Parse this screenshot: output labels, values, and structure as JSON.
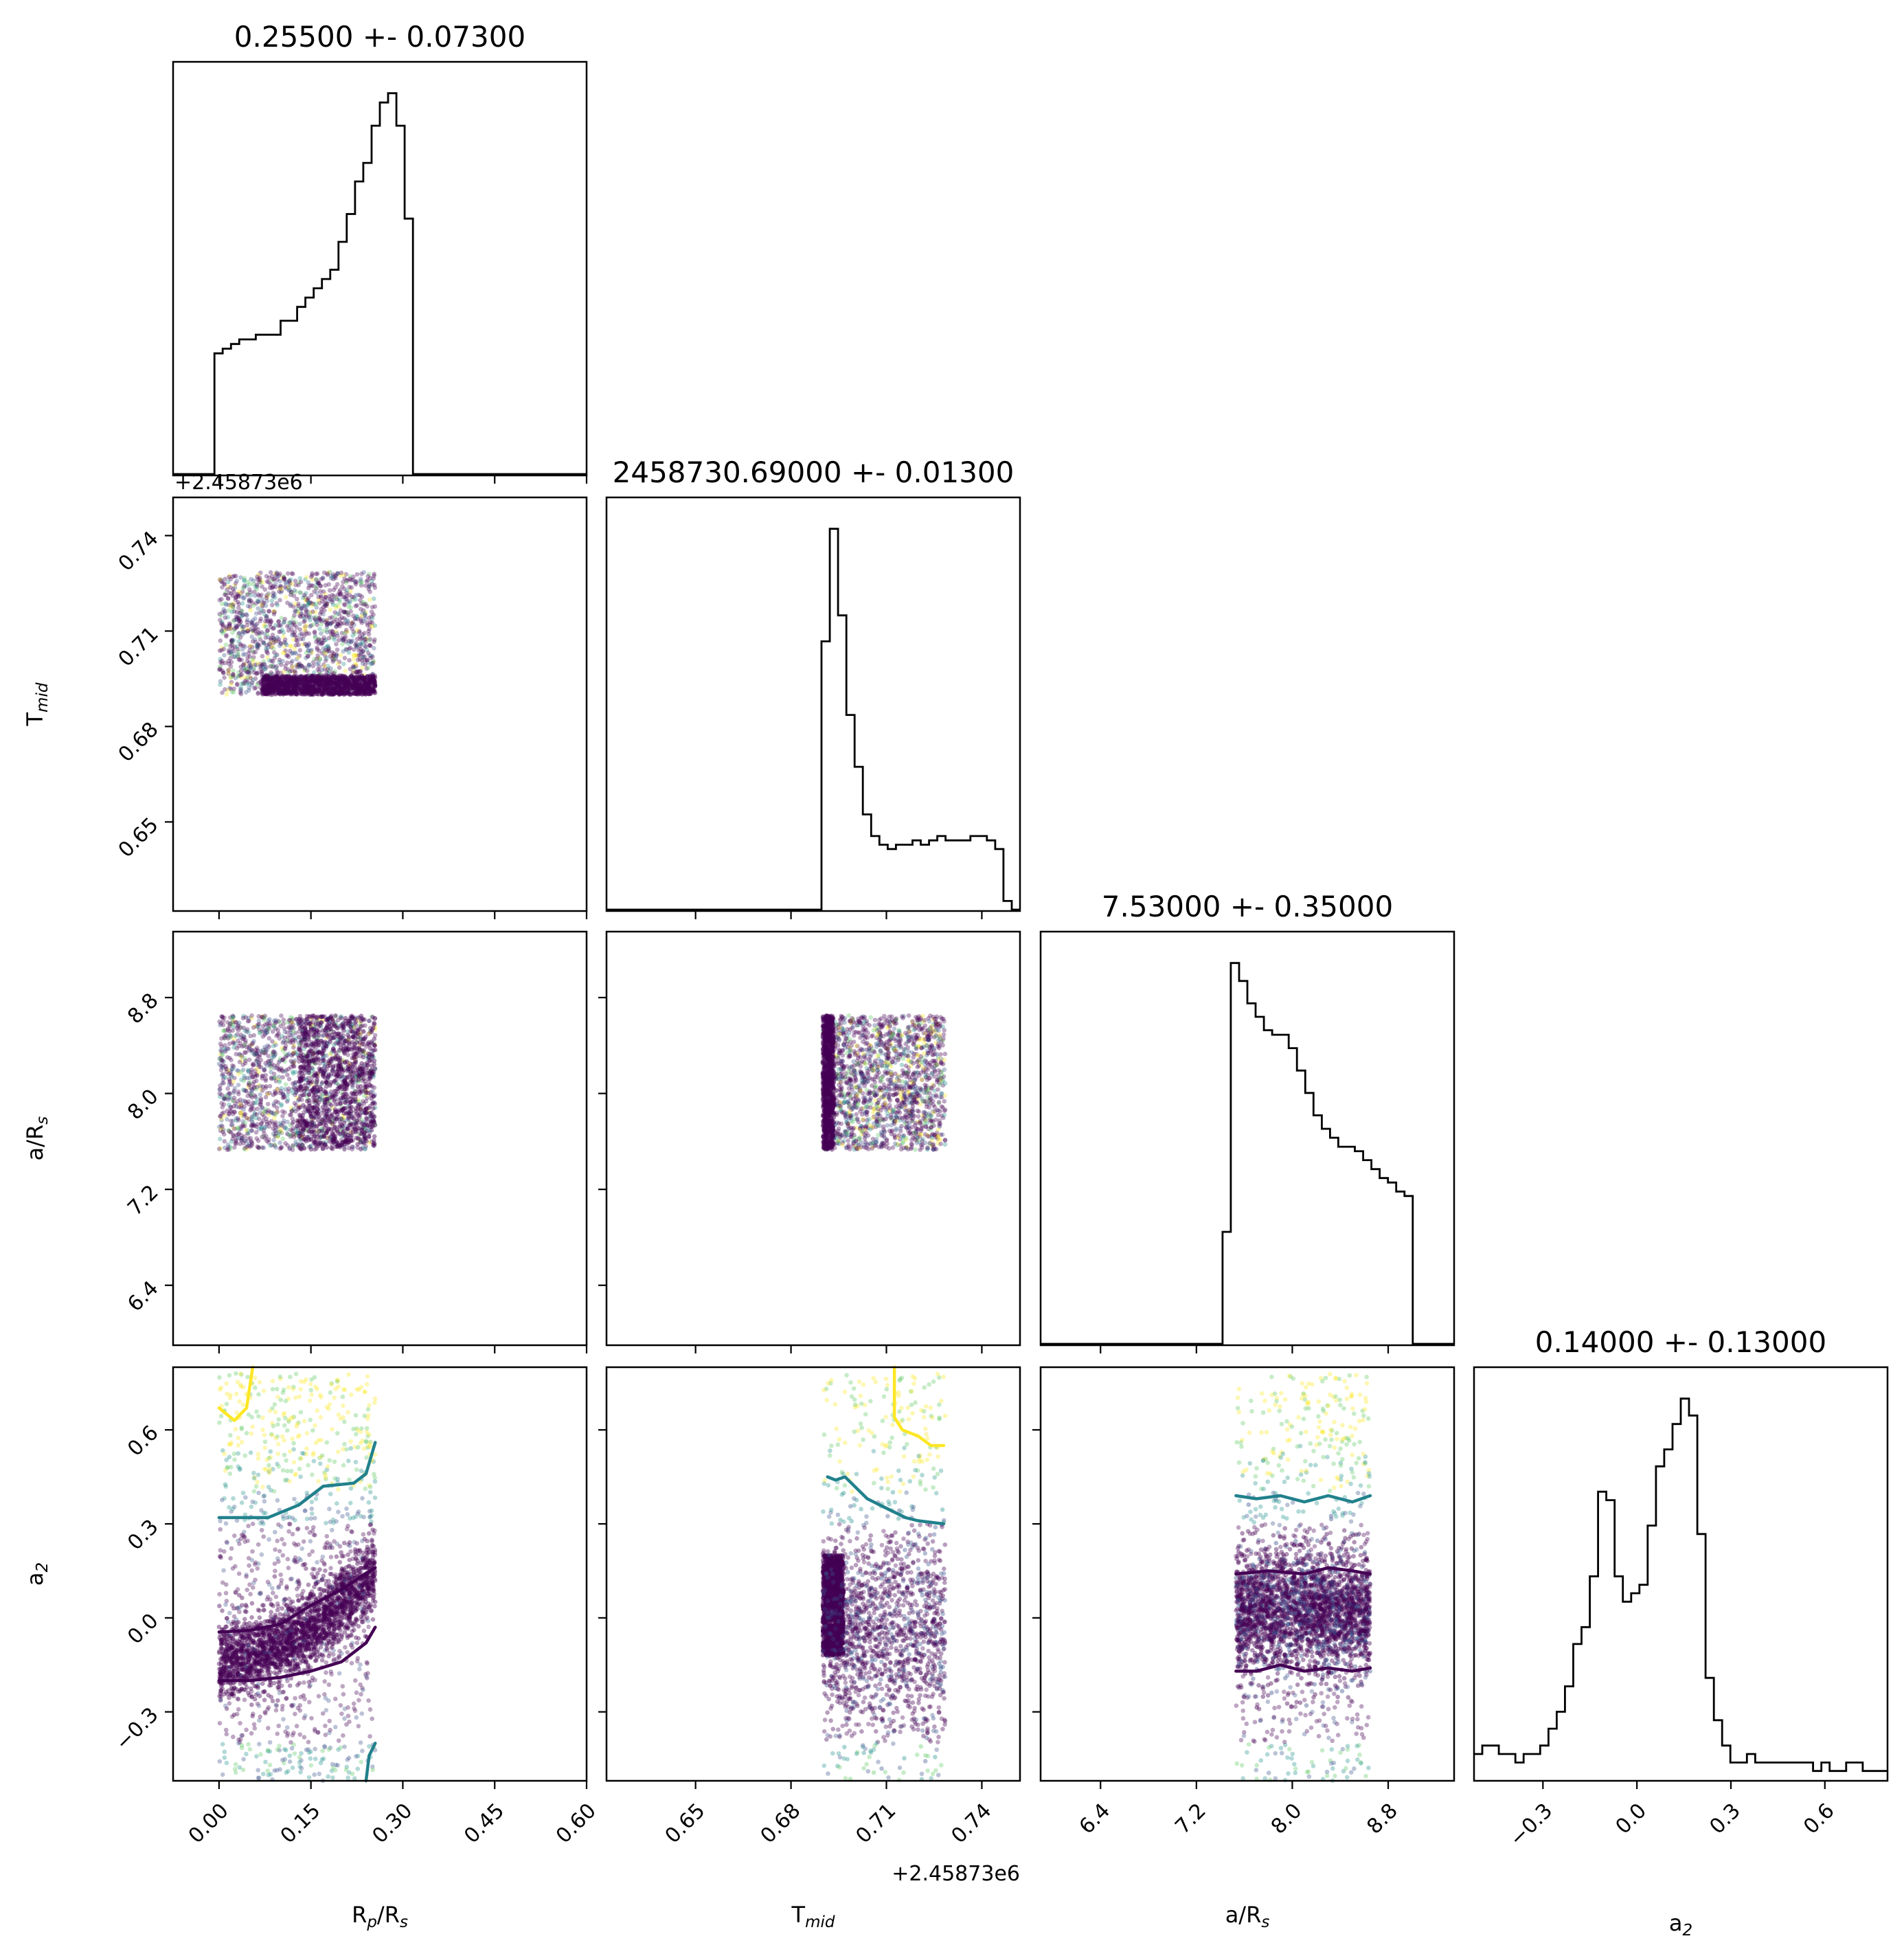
{
  "chart_data": {
    "type": "corner",
    "colors": {
      "histogram": "#000000",
      "scatter_palette": [
        "#440154",
        "#3b528b",
        "#21918c",
        "#5ec962",
        "#fde725"
      ],
      "contour_dark": "#440154",
      "contour_teal": "#21818c",
      "contour_yellow": "#fde725"
    },
    "parameters": [
      {
        "key": "rp",
        "label": "Rₚ/Rₛ",
        "label_main": "R",
        "label_sub1": "p",
        "label_mid": "/R",
        "label_sub2": "s",
        "range": [
          -0.075,
          0.6
        ],
        "ticks": [
          0.0,
          0.15,
          0.3,
          0.45,
          0.6
        ],
        "tick_labels": [
          "0.00",
          "0.15",
          "0.30",
          "0.45",
          "0.60"
        ],
        "title": "0.25500 +- 0.07300",
        "offset": ""
      },
      {
        "key": "tmid",
        "label_main": "T",
        "label_sub1": "mid",
        "label_mid": "",
        "label_sub2": "",
        "range": [
          0.622,
          0.752
        ],
        "ticks": [
          0.65,
          0.68,
          0.71,
          0.74
        ],
        "tick_labels": [
          "0.65",
          "0.68",
          "0.71",
          "0.74"
        ],
        "title": "2458730.69000 +- 0.01300",
        "offset": "+2.45873e6"
      },
      {
        "key": "ars",
        "label_main": "a/R",
        "label_sub1": "s",
        "label_mid": "",
        "label_sub2": "",
        "range": [
          5.9,
          9.35
        ],
        "ticks": [
          6.4,
          7.2,
          8.0,
          8.8
        ],
        "tick_labels": [
          "6.4",
          "7.2",
          "8.0",
          "8.8"
        ],
        "title": "7.53000 +- 0.35000",
        "offset": ""
      },
      {
        "key": "a2",
        "label_main": "a",
        "label_sub1": "2",
        "label_mid": "",
        "label_sub2": "",
        "range": [
          -0.52,
          0.8
        ],
        "ticks": [
          -0.3,
          0.0,
          0.3,
          0.6
        ],
        "tick_labels": [
          "−0.3",
          "0.0",
          "0.3",
          "0.6"
        ],
        "title": "0.14000 +- 0.13000",
        "offset": ""
      }
    ],
    "histograms": [
      {
        "edges_start": -0.075,
        "bin_width": 0.0135,
        "counts": [
          0,
          0,
          0,
          0,
          0,
          0.26,
          0.27,
          0.28,
          0.29,
          0.29,
          0.3,
          0.3,
          0.3,
          0.33,
          0.33,
          0.36,
          0.38,
          0.4,
          0.42,
          0.44,
          0.5,
          0.56,
          0.63,
          0.67,
          0.75,
          0.8,
          0.82,
          0.75,
          0.55,
          0,
          0,
          0,
          0,
          0,
          0,
          0,
          0,
          0,
          0,
          0,
          0,
          0,
          0,
          0,
          0,
          0,
          0,
          0,
          0,
          0
        ]
      },
      {
        "edges_start": 0.622,
        "bin_width": 0.0026,
        "counts": [
          0,
          0,
          0,
          0,
          0,
          0,
          0,
          0,
          0,
          0,
          0,
          0,
          0,
          0,
          0,
          0,
          0,
          0,
          0,
          0,
          0,
          0,
          0,
          0,
          0,
          0,
          0.62,
          0.88,
          0.68,
          0.45,
          0.33,
          0.22,
          0.17,
          0.15,
          0.14,
          0.15,
          0.15,
          0.16,
          0.15,
          0.16,
          0.17,
          0.16,
          0.16,
          0.16,
          0.17,
          0.17,
          0.16,
          0.14,
          0.02,
          0,
          0
        ]
      },
      {
        "edges_start": 5.9,
        "bin_width": 0.069,
        "counts": [
          0,
          0,
          0,
          0,
          0,
          0,
          0,
          0,
          0,
          0,
          0,
          0,
          0,
          0,
          0,
          0,
          0,
          0,
          0,
          0,
          0,
          0,
          0.25,
          0.85,
          0.81,
          0.76,
          0.73,
          0.7,
          0.69,
          0.69,
          0.66,
          0.61,
          0.56,
          0.51,
          0.48,
          0.46,
          0.44,
          0.44,
          0.43,
          0.41,
          0.39,
          0.37,
          0.36,
          0.34,
          0.33,
          0,
          0,
          0,
          0,
          0,
          0
        ]
      },
      {
        "edges_start": -0.52,
        "bin_width": 0.0264,
        "counts": [
          0.03,
          0.04,
          0.04,
          0.03,
          0.03,
          0.02,
          0.03,
          0.03,
          0.04,
          0.06,
          0.08,
          0.11,
          0.16,
          0.18,
          0.24,
          0.34,
          0.33,
          0.24,
          0.21,
          0.22,
          0.23,
          0.3,
          0.37,
          0.39,
          0.42,
          0.45,
          0.43,
          0.29,
          0.12,
          0.07,
          0.04,
          0.02,
          0.02,
          0.03,
          0.02,
          0.02,
          0.02,
          0.02,
          0.02,
          0.02,
          0.02,
          0.01,
          0.02,
          0.01,
          0.01,
          0.02,
          0.02,
          0.01,
          0.01,
          0.01
        ]
      }
    ],
    "sample_bounds": {
      "rp": [
        0.0,
        0.255
      ],
      "tmid": [
        0.69,
        0.7285
      ],
      "ars": [
        7.53,
        8.65
      ],
      "a2": [
        -0.52,
        0.8
      ]
    },
    "contours": [
      {
        "panel": "rp-a2",
        "color": "contour_dark",
        "points": [
          [
            0.0,
            -0.045
          ],
          [
            0.05,
            -0.04
          ],
          [
            0.1,
            -0.02
          ],
          [
            0.15,
            0.04
          ],
          [
            0.2,
            0.09
          ],
          [
            0.23,
            0.13
          ],
          [
            0.255,
            0.16
          ]
        ]
      },
      {
        "panel": "rp-a2",
        "color": "contour_dark",
        "points": [
          [
            0.0,
            -0.2
          ],
          [
            0.05,
            -0.2
          ],
          [
            0.1,
            -0.19
          ],
          [
            0.15,
            -0.17
          ],
          [
            0.2,
            -0.14
          ],
          [
            0.24,
            -0.08
          ],
          [
            0.255,
            -0.03
          ]
        ]
      },
      {
        "panel": "rp-a2",
        "color": "contour_teal",
        "points": [
          [
            0.0,
            0.32
          ],
          [
            0.08,
            0.32
          ],
          [
            0.13,
            0.36
          ],
          [
            0.17,
            0.42
          ],
          [
            0.22,
            0.43
          ],
          [
            0.24,
            0.46
          ],
          [
            0.255,
            0.56
          ]
        ]
      },
      {
        "panel": "rp-a2",
        "color": "contour_yellow",
        "points": [
          [
            0.0,
            0.67
          ],
          [
            0.025,
            0.63
          ],
          [
            0.045,
            0.67
          ],
          [
            0.055,
            0.8
          ]
        ]
      },
      {
        "panel": "rp-a2",
        "color": "contour_teal",
        "points": [
          [
            0.24,
            -0.52
          ],
          [
            0.245,
            -0.44
          ],
          [
            0.255,
            -0.4
          ]
        ]
      },
      {
        "panel": "tmid-a2",
        "color": "contour_teal",
        "points": [
          [
            0.6915,
            0.45
          ],
          [
            0.694,
            0.44
          ],
          [
            0.697,
            0.45
          ],
          [
            0.7,
            0.42
          ],
          [
            0.704,
            0.38
          ],
          [
            0.708,
            0.36
          ],
          [
            0.712,
            0.34
          ],
          [
            0.716,
            0.32
          ],
          [
            0.72,
            0.31
          ],
          [
            0.728,
            0.3
          ]
        ]
      },
      {
        "panel": "tmid-a2",
        "color": "contour_yellow",
        "points": [
          [
            0.7125,
            0.8
          ],
          [
            0.7125,
            0.64
          ],
          [
            0.715,
            0.6
          ],
          [
            0.72,
            0.58
          ],
          [
            0.724,
            0.55
          ],
          [
            0.728,
            0.55
          ]
        ]
      },
      {
        "panel": "ars-a2",
        "color": "contour_teal",
        "points": [
          [
            7.53,
            0.39
          ],
          [
            7.7,
            0.38
          ],
          [
            7.9,
            0.39
          ],
          [
            8.1,
            0.37
          ],
          [
            8.3,
            0.39
          ],
          [
            8.5,
            0.37
          ],
          [
            8.65,
            0.39
          ]
        ]
      },
      {
        "panel": "ars-a2",
        "color": "contour_dark",
        "points": [
          [
            7.53,
            -0.17
          ],
          [
            7.7,
            -0.17
          ],
          [
            7.9,
            -0.15
          ],
          [
            8.1,
            -0.17
          ],
          [
            8.3,
            -0.16
          ],
          [
            8.5,
            -0.17
          ],
          [
            8.65,
            -0.16
          ]
        ]
      },
      {
        "panel": "ars-a2",
        "color": "contour_dark",
        "points": [
          [
            7.53,
            0.14
          ],
          [
            7.8,
            0.15
          ],
          [
            8.1,
            0.14
          ],
          [
            8.3,
            0.16
          ],
          [
            8.5,
            0.15
          ],
          [
            8.65,
            0.14
          ]
        ]
      }
    ]
  }
}
